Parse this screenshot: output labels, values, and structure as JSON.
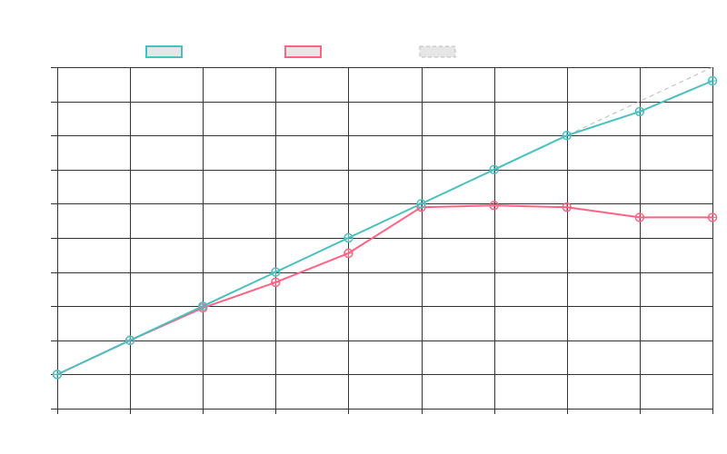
{
  "chart_data": {
    "type": "line",
    "x": [
      0,
      1,
      2,
      3,
      4,
      5,
      6,
      7,
      8,
      9
    ],
    "xlim": [
      0,
      9
    ],
    "ylim": [
      0,
      10
    ],
    "grid": true,
    "legend_position": "top",
    "series": [
      {
        "color": "#4bc0c0",
        "style": "solid",
        "markers": true,
        "values": [
          1,
          2,
          3,
          4,
          5,
          6,
          7,
          8,
          8.7,
          9.6
        ]
      },
      {
        "color": "#ff6384",
        "style": "solid",
        "markers": true,
        "values": [
          1,
          2,
          2.95,
          3.7,
          4.55,
          5.9,
          5.95,
          5.9,
          5.6,
          5.6
        ]
      },
      {
        "color": "#bbbbbb",
        "style": "dashed",
        "markers": false,
        "values": [
          1,
          2,
          3,
          4,
          5,
          6,
          7,
          8,
          9,
          10
        ]
      }
    ]
  }
}
